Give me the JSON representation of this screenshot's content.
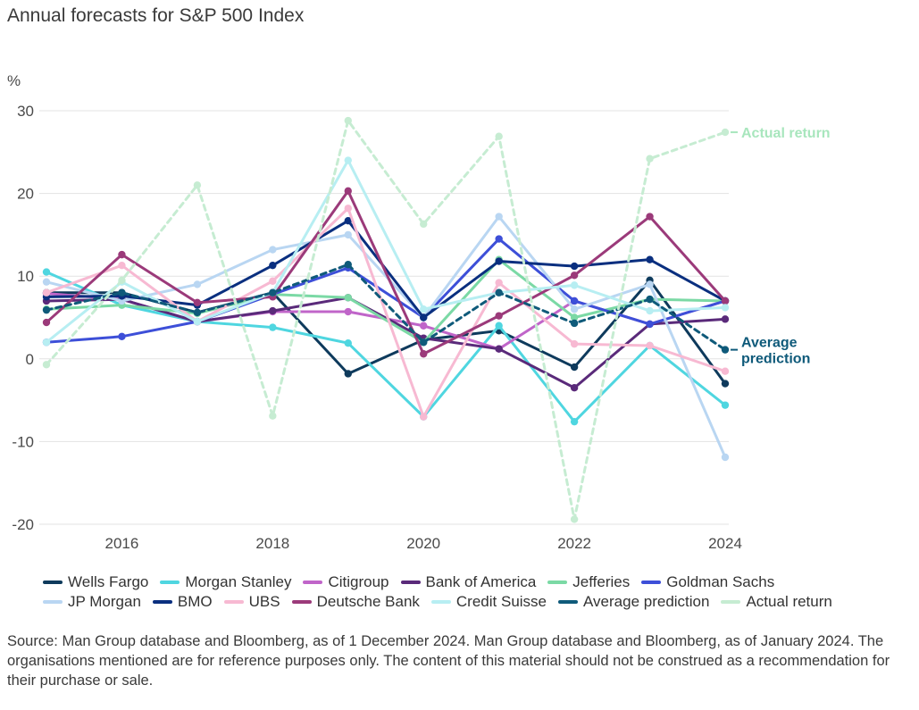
{
  "chart_data": {
    "type": "line",
    "title": "Annual forecasts for S&P 500 Index",
    "ylabel": "%",
    "xlabel": "",
    "x": [
      2015,
      2016,
      2017,
      2018,
      2019,
      2020,
      2021,
      2022,
      2023,
      2024
    ],
    "xlim": [
      2015,
      2024
    ],
    "ylim": [
      -20,
      30
    ],
    "x_ticks": [
      "2016",
      "2018",
      "2020",
      "2022",
      "2024"
    ],
    "y_ticks": [
      "30",
      "20",
      "10",
      "0",
      "-10",
      "-20"
    ],
    "grid": "horizontal",
    "legend_position": "bottom",
    "series": [
      {
        "name": "Wells Fargo",
        "color": "#0e3a5c",
        "dashed": false,
        "values": [
          8.0,
          8.0,
          5.6,
          8.0,
          -1.8,
          2.3,
          3.4,
          -1.0,
          9.5,
          -3.0
        ]
      },
      {
        "name": "Morgan Stanley",
        "color": "#4fd6e0",
        "dashed": false,
        "values": [
          10.5,
          6.5,
          4.5,
          3.8,
          1.9,
          -7.0,
          4.0,
          -7.6,
          1.6,
          -5.6
        ]
      },
      {
        "name": "Citigroup",
        "color": "#c065c9",
        "dashed": false,
        "values": [
          7.9,
          7.2,
          4.5,
          5.7,
          5.7,
          4.0,
          1.2,
          7.0,
          4.2,
          7.0
        ]
      },
      {
        "name": "Bank of America",
        "color": "#5a2a7a",
        "dashed": false,
        "values": [
          7.0,
          7.2,
          4.5,
          5.8,
          7.4,
          2.5,
          1.2,
          -3.5,
          4.2,
          4.8
        ]
      },
      {
        "name": "Jefferies",
        "color": "#7bd9a5",
        "dashed": false,
        "values": [
          6.0,
          6.5,
          5.5,
          7.8,
          7.4,
          2.0,
          12.0,
          5.0,
          7.2,
          7.0
        ]
      },
      {
        "name": "Goldman Sachs",
        "color": "#3d4fd8",
        "dashed": false,
        "values": [
          2.0,
          2.7,
          4.5,
          7.8,
          11.0,
          5.0,
          14.5,
          7.0,
          4.2,
          7.0
        ]
      },
      {
        "name": "JP Morgan",
        "color": "#b9d6f2",
        "dashed": false,
        "values": [
          9.3,
          7.0,
          9.0,
          13.2,
          15.0,
          5.0,
          17.2,
          6.0,
          9.0,
          -11.9
        ]
      },
      {
        "name": "BMO",
        "color": "#0a2f7f",
        "dashed": false,
        "values": [
          7.5,
          7.6,
          6.5,
          11.3,
          16.7,
          5.0,
          11.8,
          11.2,
          12.0,
          7.0
        ]
      },
      {
        "name": "UBS",
        "color": "#f7b9d2",
        "dashed": false,
        "values": [
          8.0,
          11.3,
          4.5,
          9.4,
          18.2,
          -7.0,
          9.2,
          1.8,
          1.6,
          -1.5
        ]
      },
      {
        "name": "Deutsche Bank",
        "color": "#9b3a7a",
        "dashed": false,
        "values": [
          4.4,
          12.6,
          6.8,
          7.5,
          20.3,
          0.6,
          5.2,
          10.1,
          17.2,
          7.0
        ]
      },
      {
        "name": "Credit Suisse",
        "color": "#b7eef2",
        "dashed": false,
        "values": [
          2.0,
          9.3,
          4.5,
          8.0,
          24.0,
          6.0,
          8.0,
          8.9,
          5.8,
          6.2
        ]
      },
      {
        "name": "Average prediction",
        "color": "#0f5a7a",
        "dashed": true,
        "values": [
          5.9,
          8.0,
          5.6,
          8.0,
          11.4,
          2.0,
          8.0,
          4.3,
          7.2,
          1.1
        ]
      },
      {
        "name": "Actual return",
        "color": "#c6ecd2",
        "dashed": true,
        "values": [
          -0.7,
          9.5,
          21.0,
          -6.9,
          28.8,
          16.3,
          26.9,
          -19.4,
          24.2,
          27.4
        ]
      }
    ],
    "end_labels": [
      {
        "series": "Actual return",
        "lines": [
          "Actual return"
        ],
        "color": "#a8e6bd"
      },
      {
        "series": "Average prediction",
        "lines": [
          "Average",
          "prediction"
        ],
        "color": "#0f5a7a"
      }
    ]
  },
  "source_text": "Source: Man Group database and Bloomberg, as of 1 December 2024. Man Group database and Bloomberg, as of January 2024. The organisations mentioned are for reference purposes only. The content of this material should not be construed as a recommendation for their purchase or sale."
}
